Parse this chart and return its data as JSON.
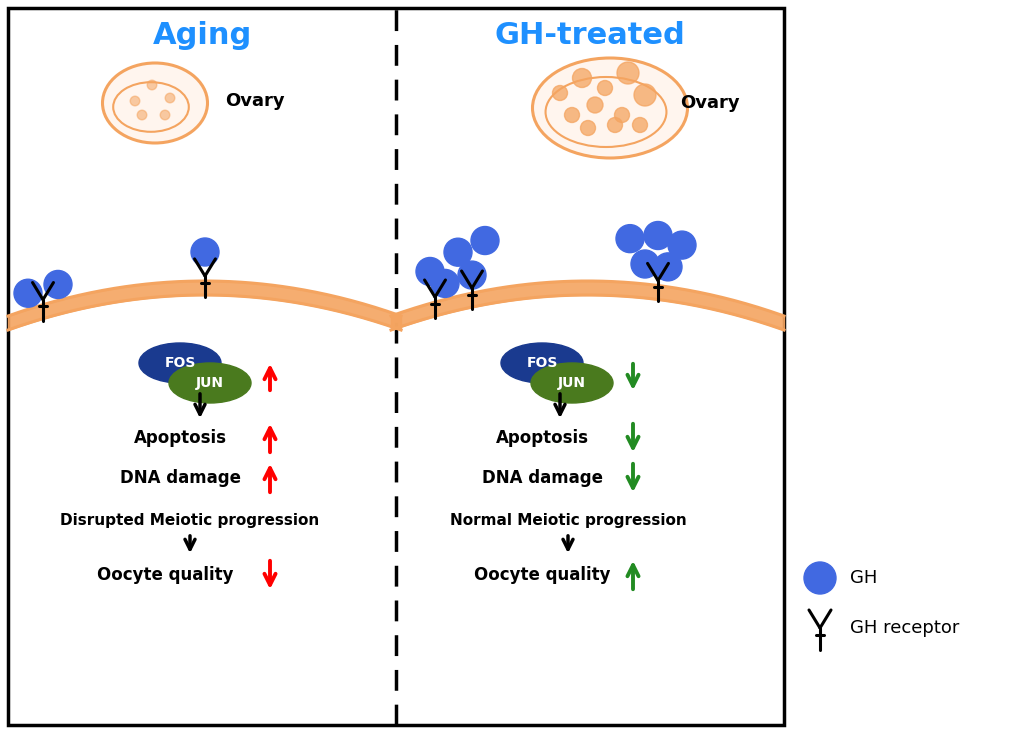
{
  "title_aging": "Aging",
  "title_gh": "GH-treated",
  "title_color": "#1E90FF",
  "title_fontsize": 22,
  "ovary_label": "Ovary",
  "fos_label": "FOS",
  "jun_label": "JUN",
  "apoptosis_label": "Apoptosis",
  "dna_label": "DNA damage",
  "meiotic_aging": "Disrupted Meiotic progression",
  "meiotic_gh": "Normal Meiotic progression",
  "oocyte_label": "Oocyte quality",
  "gh_legend": "GH",
  "receptor_legend": "GH receptor",
  "arrow_up_color": "#FF0000",
  "arrow_down_color": "#228B22",
  "arrow_black": "#000000",
  "cell_color": "#F4A460",
  "gh_ball_color": "#4169E1",
  "fos_color": "#1a3a8f",
  "jun_color": "#4a7a1e",
  "ovary_outline_color": "#F4A460",
  "ovary_fill_aging": "#FFF5EE",
  "ovary_fill_gh": "#F4A460"
}
